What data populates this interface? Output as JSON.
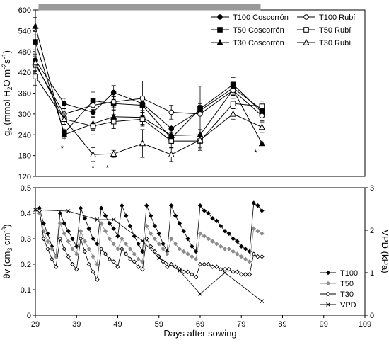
{
  "chart_data": [
    {
      "type": "line",
      "ylabel_parts": [
        "g",
        "s",
        " (mmol H",
        "2",
        "O m",
        "-2",
        "s",
        "-1",
        ")"
      ],
      "xlim": [
        29,
        84
      ],
      "ylim": [
        120,
        600
      ],
      "yticks": [
        120,
        180,
        240,
        300,
        360,
        420,
        480,
        540,
        600
      ],
      "annotations": [
        {
          "text": "*",
          "x": 35.5,
          "y": 206
        },
        {
          "text": "*",
          "x": 43.0,
          "y": 150
        },
        {
          "text": "*",
          "x": 46.5,
          "y": 150
        },
        {
          "text": "*",
          "x": 82.5,
          "y": 194
        }
      ],
      "series": [
        {
          "name": "T100 Coscorrón",
          "marker": "circle-filled",
          "x": [
            29,
            36,
            43,
            48,
            55,
            62,
            69,
            77,
            84
          ],
          "y": [
            455,
            330,
            305,
            362,
            330,
            258,
            310,
            375,
            312
          ],
          "err": [
            30,
            15,
            30,
            20,
            20,
            10,
            15,
            20,
            15
          ]
        },
        {
          "name": "T50 Coscorrón",
          "marker": "square-filled",
          "x": [
            29,
            36,
            43,
            48,
            55,
            62,
            69,
            77,
            84
          ],
          "y": [
            508,
            245,
            338,
            330,
            325,
            230,
            315,
            385,
            305
          ],
          "err": [
            30,
            15,
            25,
            20,
            20,
            15,
            15,
            20,
            15
          ]
        },
        {
          "name": "T30 Coscorrón",
          "marker": "triangle-filled",
          "x": [
            29,
            36,
            43,
            48,
            55,
            62,
            69,
            77,
            84
          ],
          "y": [
            553,
            240,
            272,
            292,
            290,
            238,
            240,
            370,
            215
          ],
          "err": [
            25,
            15,
            20,
            20,
            20,
            15,
            15,
            15,
            10
          ]
        },
        {
          "name": "T100 Rubí",
          "marker": "circle-open",
          "x": [
            29,
            36,
            43,
            48,
            55,
            62,
            69,
            77,
            84
          ],
          "y": [
            442,
            300,
            325,
            335,
            345,
            305,
            300,
            368,
            295
          ],
          "err": [
            25,
            15,
            70,
            15,
            50,
            20,
            80,
            15,
            15
          ]
        },
        {
          "name": "T50 Rubí",
          "marker": "square-open",
          "x": [
            29,
            36,
            43,
            48,
            55,
            62,
            69,
            77,
            84
          ],
          "y": [
            408,
            285,
            265,
            278,
            285,
            222,
            222,
            330,
            322
          ],
          "err": [
            25,
            15,
            25,
            20,
            20,
            20,
            20,
            15,
            15
          ]
        },
        {
          "name": "T30 Rubí",
          "marker": "triangle-open",
          "x": [
            29,
            36,
            43,
            48,
            55,
            62,
            69,
            77,
            84
          ],
          "y": [
            448,
            285,
            183,
            185,
            215,
            183,
            225,
            300,
            262
          ],
          "err": [
            25,
            15,
            20,
            10,
            40,
            20,
            30,
            15,
            15
          ]
        }
      ]
    },
    {
      "type": "line",
      "xlabel": "Days after sowing",
      "ylabel_parts": [
        "θv (cm",
        "3",
        " cm",
        "-3",
        ")"
      ],
      "y2label": "VPD (kPa)",
      "xlim": [
        29,
        109
      ],
      "xticks": [
        29,
        39,
        49,
        59,
        69,
        79,
        89,
        99,
        109
      ],
      "ylim": [
        0,
        0.5
      ],
      "yticks": [
        0,
        0.1,
        0.2,
        0.3,
        0.4,
        0.5
      ],
      "y2lim": [
        0,
        3
      ],
      "y2ticks": [
        0,
        1,
        2,
        3
      ],
      "series": [
        {
          "name": "T100",
          "marker": "diamond-filled",
          "color": "#000000",
          "axis": "left",
          "x": [
            30,
            31,
            32,
            33,
            34,
            35,
            36,
            37,
            38,
            39,
            40,
            41,
            42,
            43,
            44,
            45,
            46,
            47,
            48,
            49,
            50,
            51,
            52,
            53,
            54,
            55,
            56,
            57,
            58,
            59,
            60,
            61,
            62,
            63,
            64,
            65,
            66,
            67,
            68,
            69,
            70,
            71,
            72,
            73,
            74,
            75,
            76,
            77,
            78,
            79,
            80,
            81,
            82,
            83,
            84
          ],
          "y": [
            0.42,
            0.36,
            0.32,
            0.27,
            0.23,
            0.4,
            0.36,
            0.33,
            0.3,
            0.27,
            0.42,
            0.38,
            0.34,
            0.3,
            0.28,
            0.42,
            0.39,
            0.36,
            0.34,
            0.31,
            0.43,
            0.39,
            0.35,
            0.31,
            0.28,
            0.25,
            0.43,
            0.39,
            0.35,
            0.32,
            0.28,
            0.25,
            0.43,
            0.39,
            0.36,
            0.33,
            0.3,
            0.27,
            0.25,
            0.43,
            0.41,
            0.4,
            0.38,
            0.37,
            0.35,
            0.33,
            0.32,
            0.3,
            0.29,
            0.27,
            0.26,
            0.25,
            0.44,
            0.43,
            0.41
          ]
        },
        {
          "name": "T50",
          "marker": "diamond-filled",
          "color": "#8c8c8c",
          "axis": "left",
          "x": [
            30,
            31,
            32,
            33,
            34,
            35,
            36,
            37,
            38,
            39,
            40,
            41,
            42,
            43,
            44,
            45,
            46,
            47,
            48,
            49,
            50,
            51,
            52,
            53,
            54,
            55,
            56,
            57,
            58,
            59,
            60,
            61,
            62,
            63,
            64,
            65,
            66,
            67,
            68,
            69,
            70,
            71,
            72,
            73,
            74,
            75,
            76,
            77,
            78,
            79,
            80,
            81,
            82,
            83,
            84
          ],
          "y": [
            0.4,
            0.33,
            0.29,
            0.26,
            0.23,
            0.36,
            0.32,
            0.29,
            0.26,
            0.24,
            0.33,
            0.29,
            0.26,
            0.23,
            0.2,
            0.36,
            0.33,
            0.3,
            0.28,
            0.26,
            0.3,
            0.28,
            0.26,
            0.24,
            0.22,
            0.21,
            0.35,
            0.32,
            0.3,
            0.28,
            0.26,
            0.24,
            0.3,
            0.28,
            0.26,
            0.25,
            0.24,
            0.23,
            0.22,
            0.32,
            0.31,
            0.3,
            0.29,
            0.28,
            0.27,
            0.26,
            0.26,
            0.25,
            0.24,
            0.23,
            0.22,
            0.21,
            0.34,
            0.33,
            0.32
          ]
        },
        {
          "name": "T30",
          "marker": "diamond-open",
          "color": "#000000",
          "axis": "left",
          "x": [
            30,
            31,
            32,
            33,
            34,
            35,
            36,
            37,
            38,
            39,
            40,
            41,
            42,
            43,
            44,
            45,
            46,
            47,
            48,
            49,
            50,
            51,
            52,
            53,
            54,
            55,
            56,
            57,
            58,
            59,
            60,
            61,
            62,
            63,
            64,
            65,
            66,
            67,
            68,
            69,
            70,
            71,
            72,
            73,
            74,
            75,
            76,
            77,
            78,
            79,
            80,
            81,
            82,
            83,
            84
          ],
          "y": [
            0.41,
            0.3,
            0.26,
            0.22,
            0.19,
            0.3,
            0.26,
            0.23,
            0.2,
            0.18,
            0.3,
            0.25,
            0.2,
            0.17,
            0.14,
            0.26,
            0.24,
            0.22,
            0.21,
            0.19,
            0.26,
            0.24,
            0.22,
            0.21,
            0.19,
            0.18,
            0.3,
            0.27,
            0.25,
            0.23,
            0.21,
            0.19,
            0.2,
            0.19,
            0.18,
            0.17,
            0.17,
            0.16,
            0.15,
            0.2,
            0.2,
            0.2,
            0.19,
            0.19,
            0.18,
            0.18,
            0.18,
            0.17,
            0.17,
            0.16,
            0.16,
            0.16,
            0.24,
            0.23,
            0.23
          ]
        },
        {
          "name": "VPD",
          "marker": "x",
          "color": "#000000",
          "axis": "right",
          "x": [
            29,
            37,
            44,
            48,
            55,
            59,
            64,
            69,
            75,
            84
          ],
          "y": [
            2.48,
            2.45,
            2.25,
            2.25,
            1.75,
            1.35,
            1.05,
            0.5,
            1.0,
            0.33
          ]
        }
      ]
    }
  ]
}
